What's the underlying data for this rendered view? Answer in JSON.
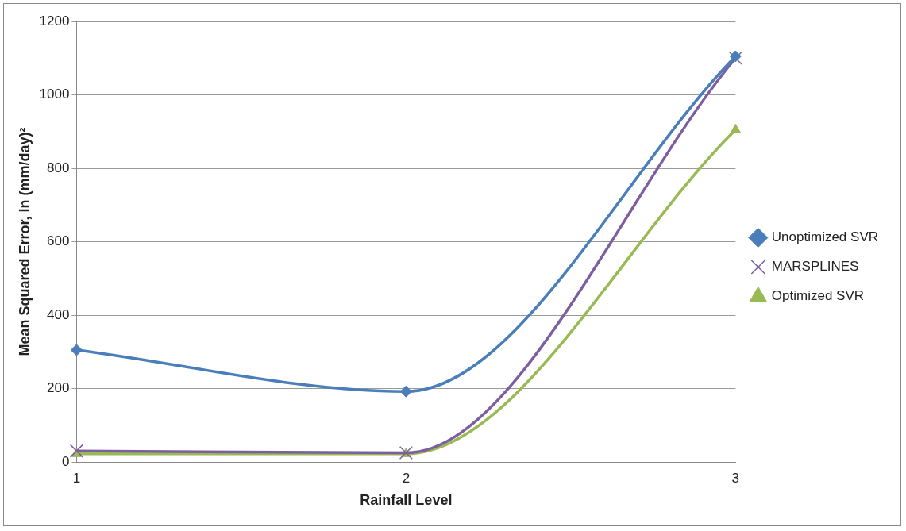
{
  "chart_data": {
    "type": "line",
    "xlabel": "Rainfall Level",
    "ylabel": "Mean Squared Error, in (mm/day)²",
    "categories": [
      "1",
      "2",
      "3"
    ],
    "series": [
      {
        "name": "Unoptimized SVR",
        "color": "#4a7ebb",
        "values": [
          305,
          192,
          1105
        ],
        "marker": "diamond"
      },
      {
        "name": "MARSPLINES",
        "color": "#7d5fa0",
        "values": [
          30,
          25,
          1100
        ],
        "marker": "cross"
      },
      {
        "name": "Optimized SVR",
        "color": "#98b954",
        "values": [
          22,
          22,
          905
        ],
        "marker": "triangle"
      }
    ],
    "ylim": [
      0,
      1200
    ],
    "yticks": [
      0,
      200,
      400,
      600,
      800,
      1000,
      1200
    ],
    "grid": "y",
    "legend": "right",
    "line_style": "solid"
  }
}
